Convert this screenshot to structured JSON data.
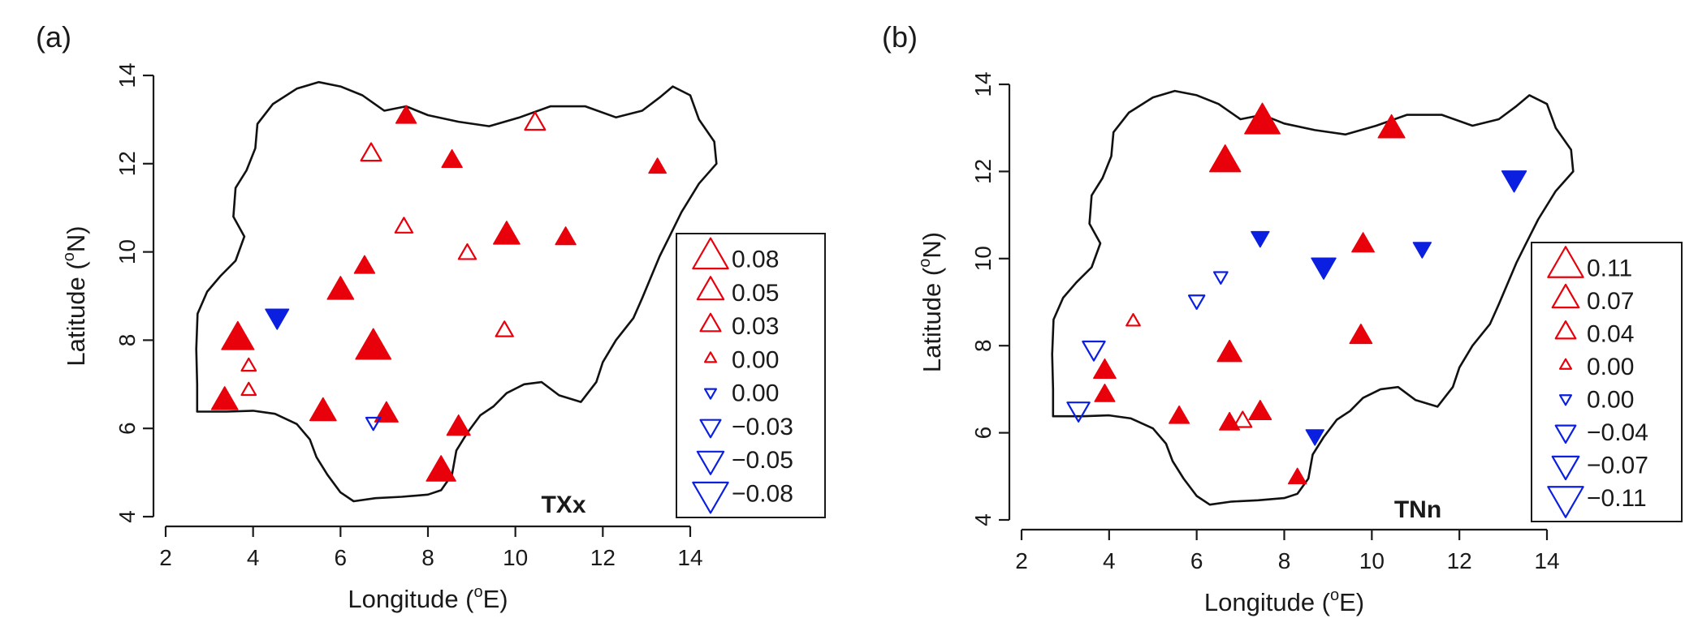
{
  "chart_data": [
    {
      "type": "scatter",
      "panel_label": "(a)",
      "index": "TXx",
      "xlabel": "Longitude (oE)",
      "xlabel_main": "Longitude (",
      "xlabel_sup": "o",
      "xlabel_end": "E)",
      "ylabel_main": "Latitude (",
      "ylabel_sup": "o",
      "ylabel_end": "N)",
      "xlim": [
        2,
        14
      ],
      "ylim": [
        4,
        14
      ],
      "xticks": [
        "2",
        "4",
        "6",
        "8",
        "10",
        "12",
        "14"
      ],
      "yticks": [
        "4",
        "6",
        "8",
        "10",
        "12",
        "14"
      ],
      "legend": {
        "position": "right",
        "entries": [
          {
            "label": "0.08",
            "size": 0.08,
            "filled": false,
            "direction": "up"
          },
          {
            "label": "0.05",
            "size": 0.05,
            "filled": false,
            "direction": "up"
          },
          {
            "label": "0.03",
            "size": 0.03,
            "filled": false,
            "direction": "up"
          },
          {
            "label": "0.00",
            "size": 0.0,
            "filled": false,
            "direction": "up"
          },
          {
            "label": "0.00",
            "size": 0.0,
            "filled": false,
            "direction": "down"
          },
          {
            "label": "−0.03",
            "size": 0.03,
            "filled": false,
            "direction": "down"
          },
          {
            "label": "−0.05",
            "size": 0.05,
            "filled": false,
            "direction": "down"
          },
          {
            "label": "−0.08",
            "size": 0.08,
            "filled": false,
            "direction": "down"
          }
        ]
      },
      "stations": [
        {
          "lon": 7.5,
          "lat": 13.05,
          "trend": 0.03,
          "significant": true
        },
        {
          "lon": 10.45,
          "lat": 12.9,
          "trend": 0.03,
          "significant": false
        },
        {
          "lon": 6.7,
          "lat": 12.2,
          "trend": 0.03,
          "significant": false
        },
        {
          "lon": 8.55,
          "lat": 12.05,
          "trend": 0.03,
          "significant": true
        },
        {
          "lon": 13.25,
          "lat": 11.9,
          "trend": 0.02,
          "significant": true
        },
        {
          "lon": 7.45,
          "lat": 10.55,
          "trend": 0.02,
          "significant": false
        },
        {
          "lon": 9.8,
          "lat": 10.35,
          "trend": 0.05,
          "significant": true
        },
        {
          "lon": 11.15,
          "lat": 10.3,
          "trend": 0.03,
          "significant": true
        },
        {
          "lon": 8.9,
          "lat": 9.95,
          "trend": 0.02,
          "significant": false
        },
        {
          "lon": 6.55,
          "lat": 9.65,
          "trend": 0.03,
          "significant": true
        },
        {
          "lon": 6.0,
          "lat": 9.1,
          "trend": 0.05,
          "significant": true
        },
        {
          "lon": 4.55,
          "lat": 8.55,
          "trend": -0.04,
          "significant": true
        },
        {
          "lon": 9.75,
          "lat": 8.2,
          "trend": 0.02,
          "significant": false
        },
        {
          "lon": 3.65,
          "lat": 8.0,
          "trend": 0.07,
          "significant": true
        },
        {
          "lon": 6.75,
          "lat": 7.8,
          "trend": 0.08,
          "significant": true
        },
        {
          "lon": 3.9,
          "lat": 7.4,
          "trend": 0.01,
          "significant": false
        },
        {
          "lon": 3.9,
          "lat": 6.85,
          "trend": 0.01,
          "significant": false
        },
        {
          "lon": 3.35,
          "lat": 6.6,
          "trend": 0.05,
          "significant": true
        },
        {
          "lon": 5.6,
          "lat": 6.35,
          "trend": 0.05,
          "significant": true
        },
        {
          "lon": 7.05,
          "lat": 6.3,
          "trend": 0.04,
          "significant": true
        },
        {
          "lon": 6.75,
          "lat": 6.15,
          "trend": -0.01,
          "significant": false
        },
        {
          "lon": 8.7,
          "lat": 6.0,
          "trend": 0.04,
          "significant": true
        },
        {
          "lon": 8.3,
          "lat": 5.0,
          "trend": 0.06,
          "significant": true
        }
      ]
    },
    {
      "type": "scatter",
      "panel_label": "(b)",
      "index": "TNn",
      "xlabel": "Longitude (oE)",
      "xlabel_main": "Longitude (",
      "xlabel_sup": "o",
      "xlabel_end": "E)",
      "ylabel_main": "Latitude (",
      "ylabel_sup": "o",
      "ylabel_end": "N)",
      "xlim": [
        2,
        14
      ],
      "ylim": [
        4,
        14
      ],
      "xticks": [
        "2",
        "4",
        "6",
        "8",
        "10",
        "12",
        "14"
      ],
      "yticks": [
        "4",
        "6",
        "8",
        "10",
        "12",
        "14"
      ],
      "legend": {
        "position": "right",
        "entries": [
          {
            "label": "0.11",
            "size": 0.11,
            "filled": false,
            "direction": "up"
          },
          {
            "label": "0.07",
            "size": 0.07,
            "filled": false,
            "direction": "up"
          },
          {
            "label": "0.04",
            "size": 0.04,
            "filled": false,
            "direction": "up"
          },
          {
            "label": "0.00",
            "size": 0.0,
            "filled": false,
            "direction": "up"
          },
          {
            "label": "0.00",
            "size": 0.0,
            "filled": false,
            "direction": "down"
          },
          {
            "label": "−0.04",
            "size": 0.04,
            "filled": false,
            "direction": "down"
          },
          {
            "label": "−0.07",
            "size": 0.07,
            "filled": false,
            "direction": "down"
          },
          {
            "label": "−0.11",
            "size": 0.11,
            "filled": false,
            "direction": "down"
          }
        ]
      },
      "stations": [
        {
          "lon": 7.5,
          "lat": 13.1,
          "trend": 0.11,
          "significant": true
        },
        {
          "lon": 10.45,
          "lat": 12.95,
          "trend": 0.07,
          "significant": true
        },
        {
          "lon": 6.65,
          "lat": 12.2,
          "trend": 0.09,
          "significant": true
        },
        {
          "lon": 13.25,
          "lat": 11.85,
          "trend": -0.06,
          "significant": true
        },
        {
          "lon": 7.45,
          "lat": 10.5,
          "trend": -0.03,
          "significant": true
        },
        {
          "lon": 9.8,
          "lat": 10.3,
          "trend": 0.05,
          "significant": true
        },
        {
          "lon": 11.15,
          "lat": 10.25,
          "trend": -0.03,
          "significant": true
        },
        {
          "lon": 8.9,
          "lat": 9.85,
          "trend": -0.06,
          "significant": true
        },
        {
          "lon": 6.55,
          "lat": 9.6,
          "trend": -0.01,
          "significant": false
        },
        {
          "lon": 6.0,
          "lat": 9.05,
          "trend": -0.02,
          "significant": false
        },
        {
          "lon": 4.55,
          "lat": 8.55,
          "trend": 0.01,
          "significant": false
        },
        {
          "lon": 9.75,
          "lat": 8.2,
          "trend": 0.05,
          "significant": true
        },
        {
          "lon": 3.65,
          "lat": 7.95,
          "trend": -0.05,
          "significant": false
        },
        {
          "lon": 6.75,
          "lat": 7.8,
          "trend": 0.06,
          "significant": true
        },
        {
          "lon": 3.9,
          "lat": 7.4,
          "trend": 0.05,
          "significant": true
        },
        {
          "lon": 3.9,
          "lat": 6.85,
          "trend": 0.04,
          "significant": true
        },
        {
          "lon": 3.3,
          "lat": 6.55,
          "trend": -0.05,
          "significant": false
        },
        {
          "lon": 7.45,
          "lat": 6.45,
          "trend": 0.05,
          "significant": true
        },
        {
          "lon": 5.6,
          "lat": 6.35,
          "trend": 0.04,
          "significant": true
        },
        {
          "lon": 7.05,
          "lat": 6.25,
          "trend": 0.03,
          "significant": false
        },
        {
          "lon": 6.75,
          "lat": 6.2,
          "trend": 0.04,
          "significant": true
        },
        {
          "lon": 8.7,
          "lat": 5.95,
          "trend": -0.03,
          "significant": true
        },
        {
          "lon": 8.3,
          "lat": 4.95,
          "trend": 0.03,
          "significant": true
        }
      ]
    }
  ],
  "colors": {
    "positive": "#e8000b",
    "negative": "#0a1fe0",
    "outline": "#111111"
  },
  "boundary": [
    [
      2.72,
      6.38
    ],
    [
      3.4,
      6.38
    ],
    [
      4.0,
      6.4
    ],
    [
      4.5,
      6.33
    ],
    [
      5.0,
      6.1
    ],
    [
      5.3,
      5.75
    ],
    [
      5.45,
      5.35
    ],
    [
      5.7,
      4.95
    ],
    [
      6.0,
      4.55
    ],
    [
      6.3,
      4.35
    ],
    [
      6.8,
      4.42
    ],
    [
      7.4,
      4.45
    ],
    [
      8.0,
      4.5
    ],
    [
      8.3,
      4.6
    ],
    [
      8.55,
      4.95
    ],
    [
      8.65,
      5.5
    ],
    [
      8.9,
      5.9
    ],
    [
      9.2,
      6.3
    ],
    [
      9.5,
      6.5
    ],
    [
      9.8,
      6.8
    ],
    [
      10.2,
      7.0
    ],
    [
      10.6,
      7.05
    ],
    [
      11.0,
      6.75
    ],
    [
      11.5,
      6.6
    ],
    [
      11.85,
      7.05
    ],
    [
      12.0,
      7.5
    ],
    [
      12.3,
      8.0
    ],
    [
      12.7,
      8.5
    ],
    [
      12.9,
      8.95
    ],
    [
      13.3,
      9.9
    ],
    [
      13.5,
      10.3
    ],
    [
      13.8,
      10.9
    ],
    [
      14.2,
      11.55
    ],
    [
      14.6,
      12.0
    ],
    [
      14.55,
      12.5
    ],
    [
      14.2,
      13.0
    ],
    [
      14.0,
      13.55
    ],
    [
      13.6,
      13.75
    ],
    [
      13.3,
      13.5
    ],
    [
      12.9,
      13.2
    ],
    [
      12.3,
      13.05
    ],
    [
      11.6,
      13.3
    ],
    [
      10.8,
      13.3
    ],
    [
      10.1,
      13.05
    ],
    [
      9.4,
      12.85
    ],
    [
      8.7,
      12.95
    ],
    [
      8.0,
      13.1
    ],
    [
      7.5,
      13.3
    ],
    [
      7.0,
      13.2
    ],
    [
      6.5,
      13.55
    ],
    [
      6.0,
      13.75
    ],
    [
      5.5,
      13.85
    ],
    [
      5.0,
      13.7
    ],
    [
      4.45,
      13.35
    ],
    [
      4.1,
      12.9
    ],
    [
      4.05,
      12.35
    ],
    [
      3.85,
      11.85
    ],
    [
      3.6,
      11.45
    ],
    [
      3.55,
      10.8
    ],
    [
      3.8,
      10.35
    ],
    [
      3.6,
      9.8
    ],
    [
      3.25,
      9.45
    ],
    [
      2.95,
      9.1
    ],
    [
      2.73,
      8.6
    ],
    [
      2.7,
      7.8
    ],
    [
      2.72,
      7.0
    ],
    [
      2.72,
      6.38
    ]
  ]
}
